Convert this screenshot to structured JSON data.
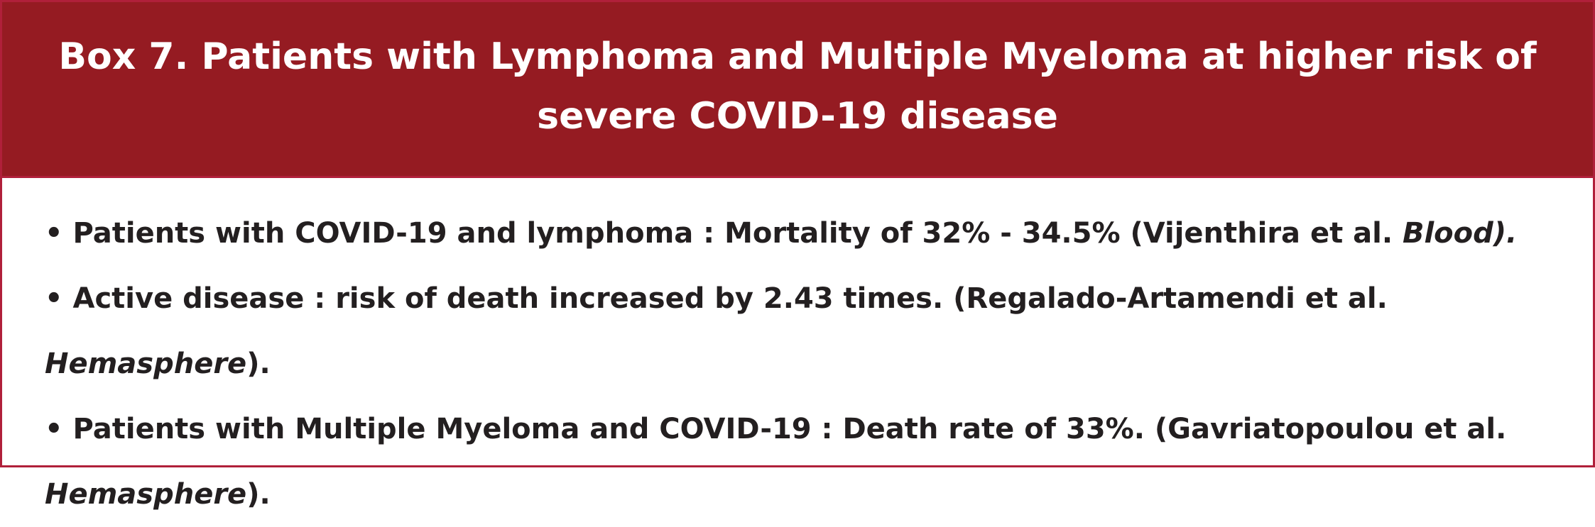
{
  "box": {
    "title": "Box 7. Patients with Lymphoma and Multiple Myeloma at higher risk of severe COVID-19 disease",
    "bullets": [
      {
        "marker": "•",
        "text": " Patients with COVID-19 and  lymphoma : Mortality of 32% - 34.5% (Vijenthira et al. ",
        "source": "Blood).",
        "tail": ""
      },
      {
        "marker": "•",
        "text": " Active disease : risk of death increased by 2.43 times. (Regalado-Artamendi et al. ",
        "source": "Hemasphere",
        "tail": ")."
      },
      {
        "marker": "•",
        "text": " Patients with Multiple Myeloma and COVID-19 : Death rate of 33%. (Gavriatopoulou et al. ",
        "source": "Hemasphere",
        "tail": ")."
      }
    ]
  },
  "colors": {
    "header_bg": "#951b22",
    "border": "#b0203a",
    "title_text": "#ffffff",
    "body_text": "#231f20"
  }
}
